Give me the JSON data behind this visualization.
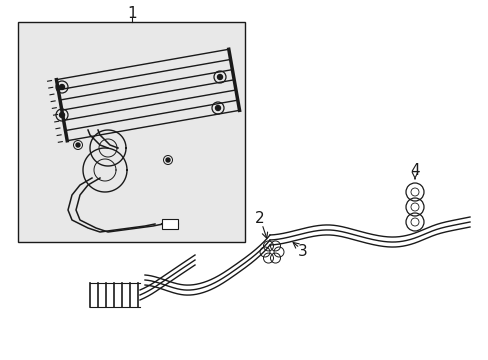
{
  "background_color": "#ffffff",
  "box_fill": "#e8e8e8",
  "line_color": "#1a1a1a",
  "fig_width": 4.89,
  "fig_height": 3.6,
  "dpi": 100
}
